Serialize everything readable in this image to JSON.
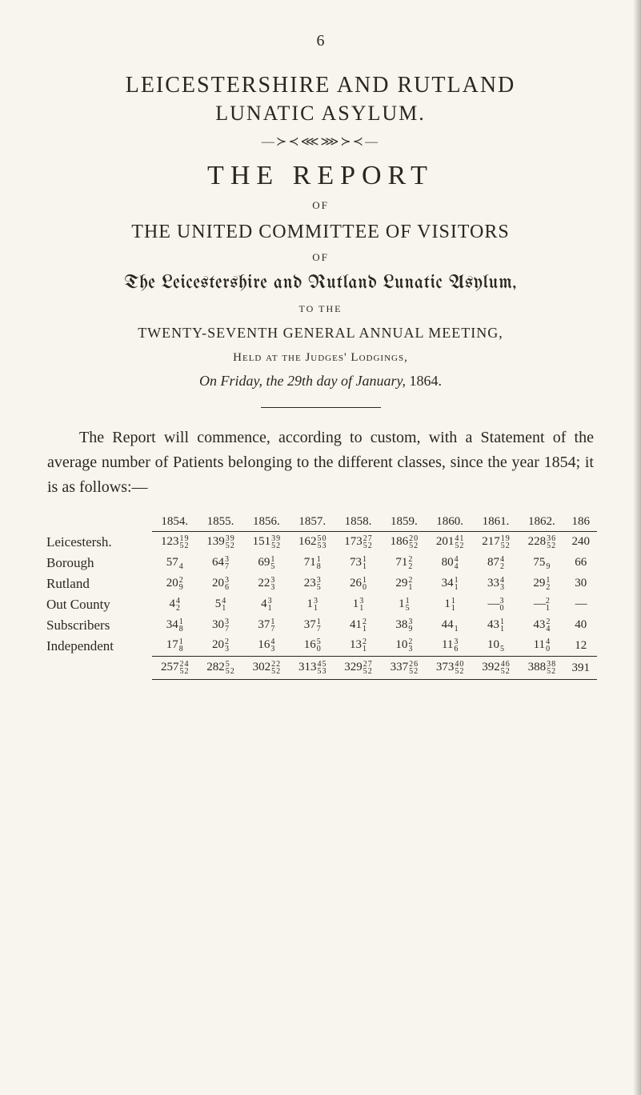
{
  "page_number": "6",
  "headings": {
    "main_line1": "LEICESTERSHIRE AND RUTLAND",
    "main_line2": "LUNATIC ASYLUM.",
    "ornament": "—≻≺⋘⋙≻≺—",
    "report": "THE REPORT",
    "of1": "OF",
    "committee": "THE UNITED COMMITTEE OF VISITORS",
    "of2": "OF",
    "blackletter": "The Leicestershire and Rutland Lunatic Asylum,",
    "to_the": "TO THE",
    "meeting": "TWENTY-SEVENTH GENERAL ANNUAL MEETING,",
    "held": "Held at the Judges' Lodgings,",
    "onfriday_pre": "On Friday, the ",
    "onfriday_em": "29th day of January,",
    "onfriday_post": " 1864."
  },
  "paragraph": "The Report will commence, according to custom, with a Statement of the average number of Patients belonging to the different classes, since the year 1854; it is as follows:—",
  "table": {
    "years": [
      "1854.",
      "1855.",
      "1856.",
      "1857.",
      "1858.",
      "1859.",
      "1860.",
      "1861.",
      "1862.",
      "186"
    ],
    "rows": [
      {
        "label": "Leicestersh.",
        "cells": [
          {
            "main": "123",
            "num": "1",
            "den": "9",
            "num2": "5",
            "den2": "2"
          },
          {
            "main": "139",
            "num": "3",
            "den": "9",
            "num2": "5",
            "den2": "2"
          },
          {
            "main": "151",
            "num": "3",
            "den": "9",
            "num2": "5",
            "den2": "2"
          },
          {
            "main": "162",
            "num": "5",
            "den": "0",
            "num2": "5",
            "den2": "3"
          },
          {
            "main": "173",
            "num": "2",
            "den": "7",
            "num2": "5",
            "den2": "2"
          },
          {
            "main": "186",
            "num": "2",
            "den": "0",
            "num2": "5",
            "den2": "2"
          },
          {
            "main": "201",
            "num": "4",
            "den": "1",
            "num2": "5",
            "den2": "2"
          },
          {
            "main": "217",
            "num": "1",
            "den": "9",
            "num2": "5",
            "den2": "2"
          },
          {
            "main": "228",
            "num": "3",
            "den": "6",
            "num2": "5",
            "den2": "2"
          },
          {
            "main": "240"
          }
        ]
      },
      {
        "label": "Borough",
        "cells": [
          {
            "main": "57",
            "sup": "4"
          },
          {
            "main": "64",
            "sup": "3 7"
          },
          {
            "main": "69",
            "sup": "1 5"
          },
          {
            "main": "71",
            "sup": "1 8"
          },
          {
            "main": "73",
            "sup": "1 1"
          },
          {
            "main": "71",
            "sup": "2 2"
          },
          {
            "main": "80",
            "sup": "4 4"
          },
          {
            "main": "87",
            "sup": "4 2"
          },
          {
            "main": "75 ",
            "sup": "9"
          },
          {
            "main": "66"
          }
        ]
      },
      {
        "label": "Rutland",
        "cells": [
          {
            "main": "20",
            "sup": "2 9"
          },
          {
            "main": "20",
            "sup": "3 6"
          },
          {
            "main": "22",
            "sup": "3 3"
          },
          {
            "main": "23",
            "sup": "3 5"
          },
          {
            "main": "26",
            "sup": "1 0"
          },
          {
            "main": "29",
            "sup": "2 1"
          },
          {
            "main": "34",
            "sup": "1 1"
          },
          {
            "main": "33",
            "sup": "4 3"
          },
          {
            "main": "29",
            "sup": "1 2"
          },
          {
            "main": "30"
          }
        ]
      },
      {
        "label": "Out County",
        "cells": [
          {
            "main": "4",
            "sup": "4 2"
          },
          {
            "main": "5",
            "sup": "4 1"
          },
          {
            "main": "4",
            "sup": "3 1"
          },
          {
            "main": "1",
            "sup": "3 1"
          },
          {
            "main": "1",
            "sup": "3 1"
          },
          {
            "main": "1",
            "sup": "1 5"
          },
          {
            "main": "1",
            "sup": "1 1"
          },
          {
            "main": "—",
            "sup": "3 0",
            "dash": true
          },
          {
            "main": "—",
            "sup": "2 1",
            "dash": true
          },
          {
            "main": "—",
            "dash": true
          }
        ]
      },
      {
        "label": "Subscribers",
        "cells": [
          {
            "main": "34",
            "sup": "1 8"
          },
          {
            "main": "30",
            "sup": "3 7"
          },
          {
            "main": "37",
            "sup": "1 7"
          },
          {
            "main": "37",
            "sup": "1 7"
          },
          {
            "main": "41",
            "sup": "2 1"
          },
          {
            "main": "38",
            "sup": "3 9"
          },
          {
            "main": "44 ",
            "sup": "1"
          },
          {
            "main": "43",
            "sup": "1 1"
          },
          {
            "main": "43",
            "sup": "2 4"
          },
          {
            "main": "40"
          }
        ]
      },
      {
        "label": "Independent",
        "cells": [
          {
            "main": "17",
            "sup": "1 8"
          },
          {
            "main": "20",
            "sup": "2 3"
          },
          {
            "main": "16",
            "sup": "4 3"
          },
          {
            "main": "16",
            "sup": "5 0"
          },
          {
            "main": "13",
            "sup": "2 1"
          },
          {
            "main": "10",
            "sup": "2 3"
          },
          {
            "main": "11",
            "sup": "3 6"
          },
          {
            "main": "10 ",
            "sup": "5"
          },
          {
            "main": "11",
            "sup": "4 0"
          },
          {
            "main": "12"
          }
        ]
      }
    ],
    "totals": [
      {
        "main": "257",
        "num": "2",
        "den": "4",
        "num2": "5",
        "den2": "2"
      },
      {
        "main": "282",
        "num": "5",
        "den": "",
        "num2": "5",
        "den2": "2"
      },
      {
        "main": "302",
        "num": "2",
        "den": "2",
        "num2": "5",
        "den2": "2"
      },
      {
        "main": "313",
        "num": "4",
        "den": "5",
        "num2": "5",
        "den2": "3"
      },
      {
        "main": "329",
        "num": "2",
        "den": "7",
        "num2": "5",
        "den2": "2"
      },
      {
        "main": "337",
        "num": "2",
        "den": "6",
        "num2": "5",
        "den2": "2"
      },
      {
        "main": "373",
        "num": "4",
        "den": "0",
        "num2": "5",
        "den2": "2"
      },
      {
        "main": "392",
        "num": "4",
        "den": "6",
        "num2": "5",
        "den2": "2"
      },
      {
        "main": "388",
        "num": "3",
        "den": "8",
        "num2": "5",
        "den2": "2"
      },
      {
        "main": "391"
      }
    ]
  },
  "colors": {
    "bg": "#f8f5ef",
    "ink": "#2a2620"
  }
}
